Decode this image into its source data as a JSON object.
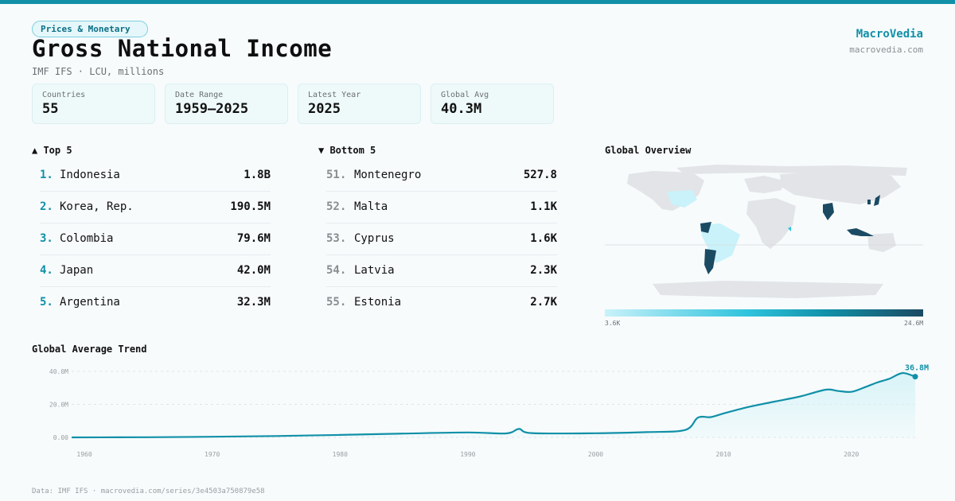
{
  "header": {
    "category": "Prices & Monetary",
    "title": "Gross National Income",
    "subtitle": "IMF IFS · LCU, millions",
    "brand": "MacroVedia",
    "brand_url": "macrovedia.com"
  },
  "stats": [
    {
      "label": "Countries",
      "value": "55"
    },
    {
      "label": "Date Range",
      "value": "1959–2025"
    },
    {
      "label": "Latest Year",
      "value": "2025"
    },
    {
      "label": "Global Avg",
      "value": "40.3M"
    }
  ],
  "top5": {
    "heading": "▲ Top 5",
    "items": [
      {
        "rank": "1.",
        "name": "Indonesia",
        "value": "1.8B"
      },
      {
        "rank": "2.",
        "name": "Korea, Rep.",
        "value": "190.5M"
      },
      {
        "rank": "3.",
        "name": "Colombia",
        "value": "79.6M"
      },
      {
        "rank": "4.",
        "name": "Japan",
        "value": "42.0M"
      },
      {
        "rank": "5.",
        "name": "Argentina",
        "value": "32.3M"
      }
    ]
  },
  "bottom5": {
    "heading": "▼ Bottom 5",
    "items": [
      {
        "rank": "51.",
        "name": "Montenegro",
        "value": "527.8"
      },
      {
        "rank": "52.",
        "name": "Malta",
        "value": "1.1K"
      },
      {
        "rank": "53.",
        "name": "Cyprus",
        "value": "1.6K"
      },
      {
        "rank": "54.",
        "name": "Latvia",
        "value": "2.3K"
      },
      {
        "rank": "55.",
        "name": "Estonia",
        "value": "2.7K"
      }
    ]
  },
  "map": {
    "heading": "Global Overview",
    "legend_min": "3.6K",
    "legend_max": "24.6M"
  },
  "trend": {
    "heading": "Global Average Trend"
  },
  "footer": "Data: IMF IFS · macrovedia.com/series/3e4503a750879e58",
  "colors": {
    "accent": "#1190a8",
    "dark": "#1b4a63",
    "area": "#d6f3f7"
  },
  "chart_data": {
    "type": "area",
    "title": "Global Average Trend",
    "xlabel": "",
    "ylabel": "",
    "xlim": [
      1959,
      2025
    ],
    "ylim": [
      0,
      40
    ],
    "y_unit": "M",
    "x_ticks": [
      "1960",
      "1970",
      "1980",
      "1990",
      "2000",
      "2010",
      "2020"
    ],
    "y_ticks": [
      "0.00",
      "20.0M",
      "40.0M"
    ],
    "end_label": "36.8M",
    "grid": true,
    "x": [
      1959,
      1965,
      1970,
      1975,
      1980,
      1985,
      1990,
      1993,
      1994,
      1995,
      2000,
      2004,
      2007,
      2008,
      2009,
      2010,
      2012,
      2014,
      2016,
      2018,
      2019,
      2020,
      2021,
      2022,
      2023,
      2024,
      2025
    ],
    "series": [
      {
        "values": [
          0.0,
          0.1,
          0.4,
          0.8,
          1.5,
          2.3,
          3.0,
          2.4,
          5.1,
          2.6,
          2.5,
          3.2,
          4.5,
          12.0,
          12.3,
          14.5,
          18.5,
          21.7,
          24.8,
          28.9,
          28.1,
          27.6,
          30.2,
          33.2,
          35.6,
          39.0,
          36.8
        ]
      }
    ]
  }
}
